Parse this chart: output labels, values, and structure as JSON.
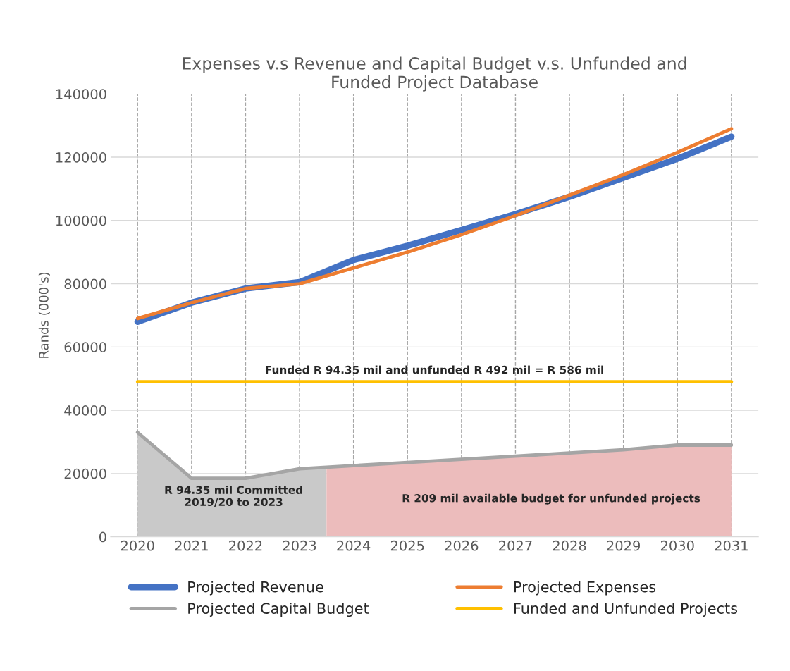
{
  "chart_data": {
    "type": "line",
    "title": "Expenses v.s Revenue and Capital Budget v.s. Unfunded and\nFunded Project Database",
    "ylabel": "Rands (000's)",
    "x": [
      2020,
      2021,
      2022,
      2023,
      2024,
      2025,
      2026,
      2027,
      2028,
      2029,
      2030,
      2031
    ],
    "xlim": [
      2019.5,
      2031.5
    ],
    "xticks": [
      2020,
      2021,
      2022,
      2023,
      2024,
      2025,
      2026,
      2027,
      2028,
      2029,
      2030,
      2031
    ],
    "ylim": [
      0,
      140000
    ],
    "yticks": [
      0,
      20000,
      40000,
      60000,
      80000,
      100000,
      120000,
      140000
    ],
    "grid": true,
    "legend": "bottom",
    "marker": "none",
    "line_style": "solid",
    "series": [
      {
        "type": "area",
        "color": "#c9c9c9",
        "x": [
          2020,
          2021,
          2022,
          2023,
          2023.5
        ],
        "values": [
          33000,
          18500,
          18500,
          21500,
          22000
        ]
      },
      {
        "type": "area",
        "color": "#ecbcbc",
        "x": [
          2023.5,
          2024,
          2025,
          2026,
          2027,
          2028,
          2029,
          2030,
          2031
        ],
        "values": [
          22000,
          22500,
          23500,
          24500,
          25500,
          26500,
          27500,
          29000,
          29000
        ]
      },
      {
        "name": "Projected Revenue",
        "color": "#4472c4",
        "values": [
          68000,
          74000,
          78500,
          80500,
          87500,
          92000,
          97000,
          102000,
          107500,
          113500,
          119500,
          126500
        ]
      },
      {
        "name": "Projected Expenses",
        "color": "#ed7d31",
        "values": [
          69000,
          74000,
          78500,
          80000,
          85000,
          90000,
          95500,
          101500,
          108000,
          114500,
          121500,
          129000
        ]
      },
      {
        "name": "Projected Capital Budget",
        "color": "#a5a5a5",
        "values": [
          33000,
          18500,
          18500,
          21500,
          22500,
          23500,
          24500,
          25500,
          26500,
          27500,
          29000,
          29000
        ]
      },
      {
        "name": "Funded and Unfunded Projects",
        "color": "#ffc000",
        "values": [
          49000,
          49000,
          49000,
          49000,
          49000,
          49000,
          49000,
          49000,
          49000,
          49000,
          49000,
          49000
        ]
      }
    ],
    "annotations": [
      "Funded R 94.35 mil and unfunded R 492 mil = R 586 mil",
      "R 94.35 mil Committed\n2019/20 to 2023",
      "R 209 mil available budget for unfunded projects"
    ]
  }
}
